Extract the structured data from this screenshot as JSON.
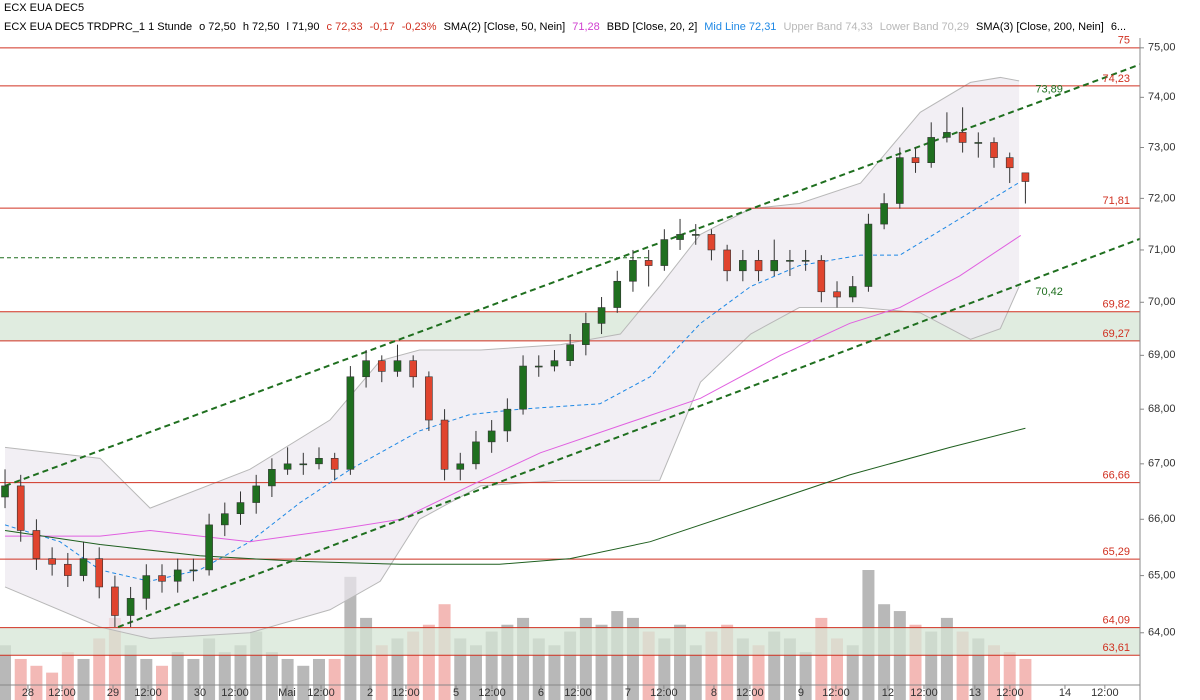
{
  "chart_data": {
    "type": "candlestick",
    "title": "ECX EUA DEC5",
    "header_items": [
      {
        "text": "ECX EUA DEC5 TRDPRC_1 1 Stunde",
        "color": "#000000"
      },
      {
        "text": "o 72,50",
        "color": "#000000"
      },
      {
        "text": "h 72,50",
        "color": "#000000"
      },
      {
        "text": "l 71,90",
        "color": "#000000"
      },
      {
        "text": "c 72,33",
        "color": "#d03020"
      },
      {
        "text": "-0,17",
        "color": "#d03020"
      },
      {
        "text": "-0,23%",
        "color": "#d03020"
      },
      {
        "text": "SMA(2) [Close, 50, Nein]",
        "color": "#000000"
      },
      {
        "text": "71,28",
        "color": "#d040d0"
      },
      {
        "text": "BBD [Close, 20, 2]",
        "color": "#000000"
      },
      {
        "text": "Mid Line 72,31",
        "color": "#1e88e5"
      },
      {
        "text": "Upper Band 74,33",
        "color": "#b8b8b8"
      },
      {
        "text": "Lower Band 70,29",
        "color": "#b8b8b8"
      },
      {
        "text": "SMA(3) [Close, 200, Nein]",
        "color": "#000000"
      },
      {
        "text": "6...",
        "color": "#000000"
      }
    ],
    "log_scale": true,
    "ylim": [
      63.1,
      75.2
    ],
    "xlim": [
      -0.32,
      72.3
    ],
    "yticks": [
      {
        "value": 64,
        "label": "64,00"
      },
      {
        "value": 65,
        "label": "65,00"
      },
      {
        "value": 66,
        "label": "66,00"
      },
      {
        "value": 67,
        "label": "67,00"
      },
      {
        "value": 68,
        "label": "68,00"
      },
      {
        "value": 69,
        "label": "69,00"
      },
      {
        "value": 70,
        "label": "70,00"
      },
      {
        "value": 71,
        "label": "71,00"
      },
      {
        "value": 72,
        "label": "72,00"
      },
      {
        "value": 73,
        "label": "73,00"
      },
      {
        "value": 74,
        "label": "74,00"
      },
      {
        "value": 75,
        "label": "75,00"
      }
    ],
    "xticks": [
      {
        "value": 1.46,
        "label": "28"
      },
      {
        "value": 3.63,
        "label": "12:00"
      },
      {
        "value": 6.88,
        "label": "29"
      },
      {
        "value": 9.11,
        "label": "12:00"
      },
      {
        "value": 12.42,
        "label": "30"
      },
      {
        "value": 14.65,
        "label": "12:00"
      },
      {
        "value": 17.96,
        "label": "Mai"
      },
      {
        "value": 20.13,
        "label": "12:00"
      },
      {
        "value": 23.25,
        "label": "2"
      },
      {
        "value": 25.54,
        "label": "12:00"
      },
      {
        "value": 28.73,
        "label": "5"
      },
      {
        "value": 31.02,
        "label": "12:00"
      },
      {
        "value": 34.14,
        "label": "6"
      },
      {
        "value": 36.5,
        "label": "12:00"
      },
      {
        "value": 39.68,
        "label": "7"
      },
      {
        "value": 41.97,
        "label": "12:00"
      },
      {
        "value": 45.16,
        "label": "8"
      },
      {
        "value": 47.45,
        "label": "12:00"
      },
      {
        "value": 50.7,
        "label": "9"
      },
      {
        "value": 52.93,
        "label": "12:00"
      },
      {
        "value": 56.24,
        "label": "12"
      },
      {
        "value": 58.54,
        "label": "12:00"
      },
      {
        "value": 61.78,
        "label": "13"
      },
      {
        "value": 64.01,
        "label": "12:00"
      },
      {
        "value": 67.52,
        "label": "14"
      },
      {
        "value": 70.06,
        "label": "12:00"
      }
    ],
    "up_color": "#1f6f1f",
    "down_color": "#e0442e",
    "ohlc": [
      [
        66.4,
        66.9,
        66.2,
        66.6
      ],
      [
        66.6,
        66.8,
        65.6,
        65.8
      ],
      [
        65.8,
        66.0,
        65.1,
        65.3
      ],
      [
        65.3,
        65.5,
        65.0,
        65.2
      ],
      [
        65.2,
        65.4,
        64.8,
        65.0
      ],
      [
        65.0,
        65.6,
        64.9,
        65.3
      ],
      [
        65.3,
        65.5,
        64.6,
        64.8
      ],
      [
        64.8,
        65.0,
        64.1,
        64.3
      ],
      [
        64.3,
        64.8,
        64.1,
        64.6
      ],
      [
        64.6,
        65.2,
        64.4,
        65.0
      ],
      [
        65.0,
        65.2,
        64.7,
        64.9
      ],
      [
        64.9,
        65.3,
        64.7,
        65.1
      ],
      [
        65.1,
        65.3,
        64.9,
        65.1
      ],
      [
        65.1,
        66.1,
        65.0,
        65.9
      ],
      [
        65.9,
        66.3,
        65.7,
        66.1
      ],
      [
        66.1,
        66.5,
        65.9,
        66.3
      ],
      [
        66.3,
        66.8,
        66.1,
        66.6
      ],
      [
        66.6,
        67.1,
        66.4,
        66.9
      ],
      [
        66.9,
        67.3,
        66.8,
        67.0
      ],
      [
        67.0,
        67.2,
        66.8,
        67.0
      ],
      [
        67.0,
        67.3,
        66.9,
        67.1
      ],
      [
        67.1,
        67.2,
        66.7,
        66.9
      ],
      [
        66.9,
        68.8,
        66.8,
        68.6
      ],
      [
        68.6,
        69.1,
        68.4,
        68.9
      ],
      [
        68.9,
        69.0,
        68.5,
        68.7
      ],
      [
        68.7,
        69.2,
        68.6,
        68.9
      ],
      [
        68.9,
        69.0,
        68.4,
        68.6
      ],
      [
        68.6,
        68.7,
        67.6,
        67.8
      ],
      [
        67.8,
        68.0,
        66.7,
        66.9
      ],
      [
        66.9,
        67.2,
        66.7,
        67.0
      ],
      [
        67.0,
        67.6,
        66.9,
        67.4
      ],
      [
        67.4,
        67.8,
        67.2,
        67.6
      ],
      [
        67.6,
        68.2,
        67.4,
        68.0
      ],
      [
        68.0,
        69.0,
        67.9,
        68.8
      ],
      [
        68.8,
        69.0,
        68.6,
        68.8
      ],
      [
        68.8,
        69.1,
        68.7,
        68.9
      ],
      [
        68.9,
        69.4,
        68.8,
        69.2
      ],
      [
        69.2,
        69.8,
        69.0,
        69.6
      ],
      [
        69.6,
        70.1,
        69.4,
        69.9
      ],
      [
        69.9,
        70.6,
        69.8,
        70.4
      ],
      [
        70.4,
        71.0,
        70.2,
        70.8
      ],
      [
        70.8,
        71.0,
        70.3,
        70.7
      ],
      [
        70.7,
        71.4,
        70.6,
        71.2
      ],
      [
        71.2,
        71.6,
        71.0,
        71.3
      ],
      [
        71.3,
        71.5,
        71.1,
        71.3
      ],
      [
        71.3,
        71.4,
        70.8,
        71.0
      ],
      [
        71.0,
        71.1,
        70.4,
        70.6
      ],
      [
        70.6,
        71.0,
        70.4,
        70.8
      ],
      [
        70.8,
        71.0,
        70.4,
        70.6
      ],
      [
        70.6,
        71.2,
        70.5,
        70.8
      ],
      [
        70.8,
        71.0,
        70.5,
        70.8
      ],
      [
        70.8,
        71.0,
        70.6,
        70.8
      ],
      [
        70.8,
        70.9,
        70.0,
        70.2
      ],
      [
        70.2,
        70.4,
        69.9,
        70.1
      ],
      [
        70.1,
        70.5,
        70.0,
        70.3
      ],
      [
        70.3,
        71.7,
        70.2,
        71.5
      ],
      [
        71.5,
        72.1,
        71.4,
        71.9
      ],
      [
        71.9,
        73.0,
        71.8,
        72.8
      ],
      [
        72.8,
        73.0,
        72.5,
        72.7
      ],
      [
        72.7,
        73.5,
        72.6,
        73.2
      ],
      [
        73.2,
        73.7,
        73.1,
        73.3
      ],
      [
        73.3,
        73.8,
        72.9,
        73.1
      ],
      [
        73.1,
        73.3,
        72.8,
        73.1
      ],
      [
        73.1,
        73.2,
        72.6,
        72.8
      ],
      [
        72.8,
        72.9,
        72.3,
        72.6
      ],
      [
        72.5,
        72.5,
        71.9,
        72.33
      ]
    ],
    "volume": [
      40,
      30,
      25,
      20,
      35,
      30,
      45,
      60,
      40,
      30,
      25,
      35,
      30,
      45,
      35,
      40,
      50,
      35,
      30,
      25,
      30,
      30,
      90,
      60,
      40,
      45,
      50,
      55,
      70,
      45,
      40,
      50,
      55,
      60,
      45,
      40,
      50,
      60,
      55,
      65,
      60,
      50,
      45,
      55,
      40,
      50,
      55,
      45,
      40,
      50,
      45,
      35,
      60,
      45,
      40,
      95,
      70,
      65,
      55,
      50,
      60,
      50,
      45,
      40,
      35,
      30
    ],
    "volume_up_color": "#b8b8b8",
    "volume_down_color": "#f3b9b6",
    "bollinger": {
      "fill": "#ece8f0",
      "edge": "#b8b8b8",
      "x": [
        0,
        6.05,
        9.24,
        15.6,
        20.7,
        23.9,
        26.4,
        30.3,
        35.4,
        39.2,
        41.7,
        44.3,
        47.5,
        50.6,
        54.5,
        58.3,
        61.5,
        63.4,
        64.6
      ],
      "upper": [
        67.3,
        67.1,
        66.2,
        66.9,
        67.8,
        68.9,
        69.1,
        69.1,
        69.2,
        69.4,
        70.3,
        71.3,
        71.8,
        71.9,
        72.3,
        73.7,
        74.3,
        74.4,
        74.33
      ],
      "lower": [
        64.8,
        64.1,
        63.9,
        64.0,
        64.4,
        64.9,
        66.0,
        66.6,
        66.7,
        66.7,
        66.7,
        68.5,
        69.4,
        69.9,
        69.9,
        69.8,
        69.3,
        69.5,
        70.3
      ]
    },
    "series": [
      {
        "name": "Mid Line",
        "color": "#1e88e5",
        "dashed": true,
        "x": [
          0,
          3.5,
          6.05,
          9.2,
          12.4,
          15.6,
          18.8,
          22.0,
          26.4,
          29.6,
          32.8,
          37.9,
          41.1,
          44.3,
          47.5,
          50.6,
          54.5,
          57.0,
          60.8,
          64.6
        ],
        "values": [
          65.9,
          65.6,
          65.1,
          64.9,
          65.1,
          65.6,
          66.3,
          66.9,
          67.6,
          67.9,
          68.0,
          68.1,
          68.6,
          69.6,
          70.3,
          70.7,
          70.9,
          70.9,
          71.6,
          72.31
        ]
      },
      {
        "name": "SMA(2)",
        "color": "#e060e0",
        "dashed": false,
        "x": [
          0,
          6.05,
          9.24,
          15.6,
          20.7,
          25.2,
          29.6,
          34.1,
          39.2,
          44.3,
          49.4,
          53.8,
          57.0,
          60.8,
          64.7
        ],
        "values": [
          65.7,
          65.7,
          65.8,
          65.6,
          65.8,
          66.0,
          66.6,
          67.2,
          67.7,
          68.2,
          69.0,
          69.6,
          69.9,
          70.5,
          71.28
        ]
      },
      {
        "name": "SMA(3)",
        "color": "#1f5f1f",
        "dashed": false,
        "x": [
          0,
          6.05,
          12.4,
          18.8,
          25.2,
          31.5,
          36.0,
          41.1,
          47.5,
          53.8,
          60.2,
          65.0
        ],
        "values": [
          65.8,
          65.55,
          65.35,
          65.25,
          65.2,
          65.2,
          65.3,
          65.6,
          66.2,
          66.8,
          67.3,
          67.65
        ]
      }
    ],
    "channels": [
      {
        "label": "73,89",
        "x": [
          0,
          76
        ],
        "values": [
          66.6,
          75.1
        ],
        "label_at": 65,
        "color": "#1f6f1f"
      },
      {
        "label": "70,42",
        "x": [
          7.2,
          73.3
        ],
        "values": [
          64.1,
          71.33
        ],
        "label_at": 65,
        "color": "#1f6f1f"
      }
    ],
    "dashed_level": {
      "value": 70.85,
      "x": [
        -0.32,
        41.1
      ],
      "color": "#1f6f1f"
    },
    "level_color": "#d03020",
    "levels": [
      {
        "value": 75,
        "label": "75"
      },
      {
        "value": 74.23,
        "label": "74,23"
      },
      {
        "value": 71.81,
        "label": "71,81"
      },
      {
        "value": 69.82,
        "label": "69,82",
        "fill": "#d6e5d6"
      },
      {
        "value": 69.27,
        "label": "69,27"
      },
      {
        "value": 66.66,
        "label": "66,66"
      },
      {
        "value": 65.29,
        "label": "65,29"
      },
      {
        "value": 64.09,
        "label": "64,09",
        "fill": "#d6e5d6"
      },
      {
        "value": 63.61,
        "label": "63,61"
      }
    ]
  }
}
